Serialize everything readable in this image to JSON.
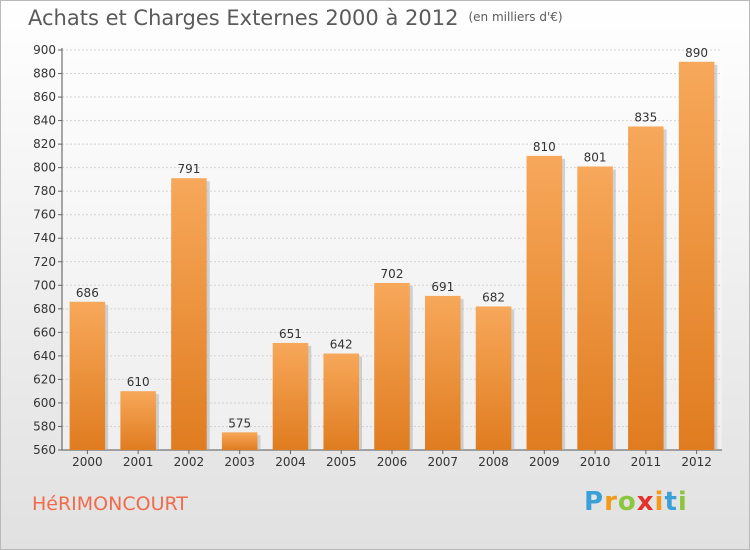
{
  "chart_data": {
    "type": "bar",
    "title": "Achats et Charges Externes 2000 à 2012",
    "subtitle": "(en milliers d'€)",
    "categories": [
      "2000",
      "2001",
      "2002",
      "2003",
      "2004",
      "2005",
      "2006",
      "2007",
      "2008",
      "2009",
      "2010",
      "2011",
      "2012"
    ],
    "values": [
      686,
      610,
      791,
      575,
      651,
      642,
      702,
      691,
      682,
      810,
      801,
      835,
      890
    ],
    "ylim": [
      560,
      900
    ],
    "yticks": [
      560,
      580,
      600,
      620,
      640,
      660,
      680,
      700,
      720,
      740,
      760,
      780,
      800,
      820,
      840,
      860,
      880,
      900
    ],
    "grid": true,
    "bar_color_top": "#f7a85a",
    "bar_color_bottom": "#e07c20"
  },
  "footer": {
    "commune": "HéRIMONCOURT",
    "brand_letters": [
      "P",
      "r",
      "o",
      "x",
      "i",
      "t",
      "i"
    ],
    "brand_colors": [
      "#3aa0d8",
      "#f39a1b",
      "#8cc63f",
      "#e4322b",
      "#f39a1b",
      "#3aa0d8",
      "#8cc63f"
    ]
  }
}
